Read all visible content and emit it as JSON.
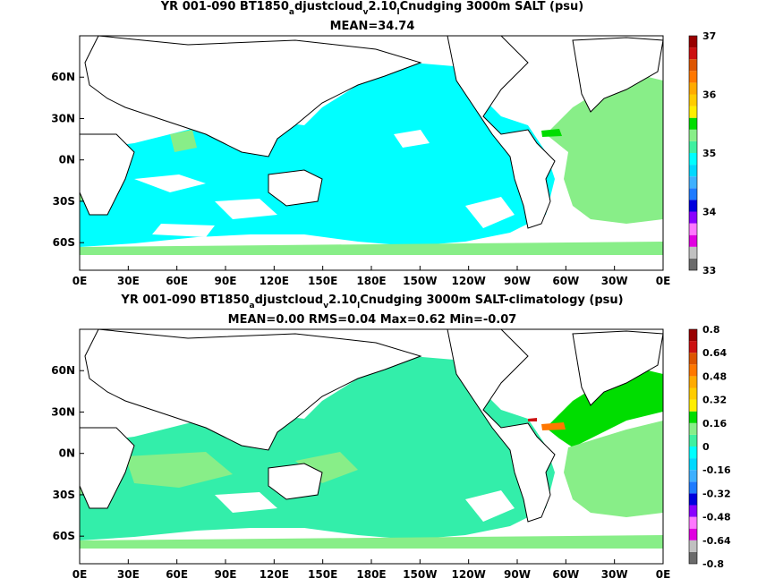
{
  "chart_data": [
    {
      "type": "heatmap",
      "title": "YR 001-090 BT1850_adjustcloud_v2.10_lCnudging 3000m SALT (psu)",
      "title_parts": {
        "a": "YR 001-090 BT1850",
        "b": "a",
        "c": "djustcloud",
        "d": "v",
        "e": "2.10",
        "f": "l",
        "g": "Cnudging 3000m SALT (psu)"
      },
      "subtitle": "MEAN=34.74",
      "x_ticks": [
        "0E",
        "30E",
        "60E",
        "90E",
        "120E",
        "150E",
        "180E",
        "150W",
        "120W",
        "90W",
        "60W",
        "30W",
        "0E"
      ],
      "y_ticks": [
        "60N",
        "30N",
        "0N",
        "30S",
        "60S"
      ],
      "xlim": [
        0,
        360
      ],
      "ylim": [
        -80,
        90
      ],
      "colorbar": {
        "labels": [
          "33",
          "34",
          "35",
          "36",
          "37"
        ],
        "min": 33,
        "max": 37,
        "colors": [
          "#6b6b6b",
          "#c0c0c0",
          "#e000e0",
          "#ff77ff",
          "#8a00ff",
          "#0000dd",
          "#1f7bff",
          "#3fb0ff",
          "#00d8ff",
          "#00ffff",
          "#3ff0a0",
          "#88ee88",
          "#00dd00",
          "#ffee00",
          "#ffcc00",
          "#ffaa00",
          "#ff7700",
          "#dd5500",
          "#cc1111",
          "#990000"
        ]
      },
      "field_colors": {
        "ocean": "#00ffff",
        "deep": "#33eeaa",
        "salty": "#88ee88",
        "fresh": "#ffffff",
        "hot": "#00dd00"
      }
    },
    {
      "type": "heatmap",
      "title": "YR 001-090 BT1850_adjustcloud_v2.10_lCnudging 3000m SALT-climatology (psu)",
      "title_parts": {
        "a": "YR 001-090 BT1850",
        "b": "a",
        "c": "djustcloud",
        "d": "v",
        "e": "2.10",
        "f": "l",
        "g": "Cnudging 3000m SALT-climatology (psu)"
      },
      "subtitle": "MEAN=0.00   RMS=0.04   Max=0.62   Min=-0.07",
      "x_ticks": [
        "0E",
        "30E",
        "60E",
        "90E",
        "120E",
        "150E",
        "180E",
        "150W",
        "120W",
        "90W",
        "60W",
        "30W",
        "0E"
      ],
      "y_ticks": [
        "60N",
        "30N",
        "0N",
        "30S",
        "60S"
      ],
      "xlim": [
        0,
        360
      ],
      "ylim": [
        -80,
        90
      ],
      "colorbar": {
        "labels": [
          "0.8",
          "0.64",
          "0.48",
          "0.32",
          "0.16",
          "0",
          "-0.16",
          "-0.32",
          "-0.48",
          "-0.64",
          "-0.8"
        ],
        "min": -0.8,
        "max": 0.8,
        "colors": [
          "#6b6b6b",
          "#c0c0c0",
          "#e000e0",
          "#ff77ff",
          "#8a00ff",
          "#0000dd",
          "#1f7bff",
          "#3fb0ff",
          "#00d8ff",
          "#00ffff",
          "#3ff0a0",
          "#88ee88",
          "#00dd00",
          "#ffee00",
          "#ffcc00",
          "#ffaa00",
          "#ff7700",
          "#dd5500",
          "#cc1111",
          "#990000"
        ]
      },
      "field_colors": {
        "ocean": "#33eeaa",
        "deep": "#88ee88",
        "salty": "#00dd00",
        "fresh": "#ffffff",
        "hot": "#ff7700"
      }
    }
  ]
}
